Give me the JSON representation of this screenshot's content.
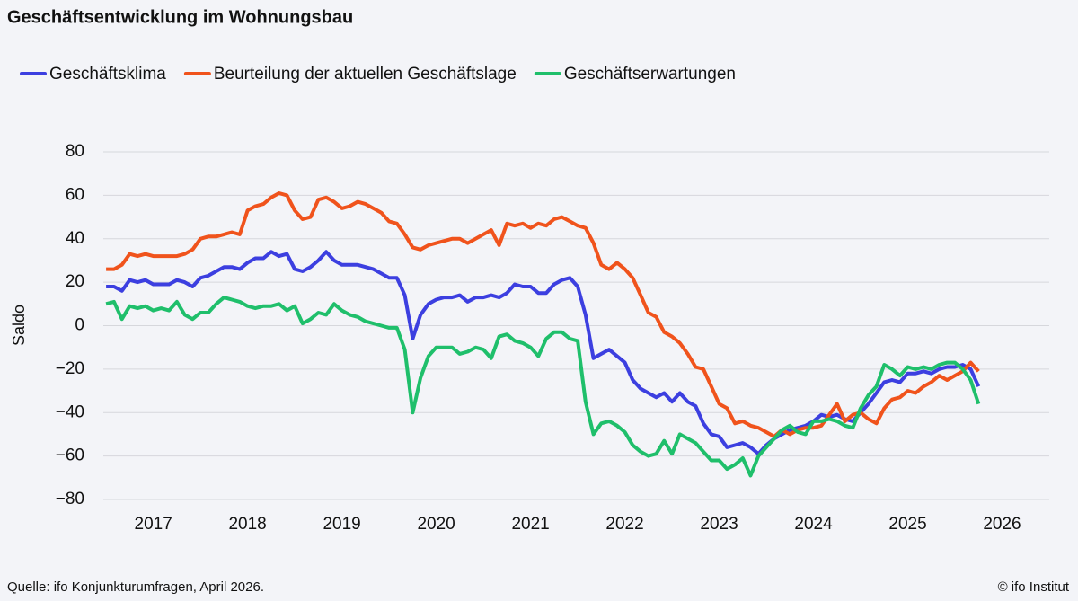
{
  "chart_data": {
    "type": "line",
    "title": "Geschäftsentwicklung im Wohnungsbau",
    "y_label": "Saldo",
    "source": "Quelle: ifo Konjunkturumfragen, April 2026.",
    "credit": "© ifo Institut",
    "x": [
      2017,
      2017.083,
      2017.167,
      2017.25,
      2017.333,
      2017.417,
      2017.5,
      2017.583,
      2017.667,
      2017.75,
      2017.833,
      2017.917,
      2018,
      2018.083,
      2018.167,
      2018.25,
      2018.333,
      2018.417,
      2018.5,
      2018.583,
      2018.667,
      2018.75,
      2018.833,
      2018.917,
      2019,
      2019.083,
      2019.167,
      2019.25,
      2019.333,
      2019.417,
      2019.5,
      2019.583,
      2019.667,
      2019.75,
      2019.833,
      2019.917,
      2020,
      2020.083,
      2020.167,
      2020.25,
      2020.333,
      2020.417,
      2020.5,
      2020.583,
      2020.667,
      2020.75,
      2020.833,
      2020.917,
      2021,
      2021.083,
      2021.167,
      2021.25,
      2021.333,
      2021.417,
      2021.5,
      2021.583,
      2021.667,
      2021.75,
      2021.833,
      2021.917,
      2022,
      2022.083,
      2022.167,
      2022.25,
      2022.333,
      2022.417,
      2022.5,
      2022.583,
      2022.667,
      2022.75,
      2022.833,
      2022.917,
      2023,
      2023.083,
      2023.167,
      2023.25,
      2023.333,
      2023.417,
      2023.5,
      2023.583,
      2023.667,
      2023.75,
      2023.833,
      2023.917,
      2024,
      2024.083,
      2024.167,
      2024.25,
      2024.333,
      2024.417,
      2024.5,
      2024.583,
      2024.667,
      2024.75,
      2024.833,
      2024.917,
      2025,
      2025.083,
      2025.167,
      2025.25,
      2025.333,
      2025.417,
      2025.5,
      2025.583,
      2025.667,
      2025.75,
      2025.833,
      2025.917,
      2026,
      2026.083,
      2026.167,
      2026.25
    ],
    "series": [
      {
        "name": "Geschäftsklima",
        "color": "#3c3fe0",
        "values": [
          18,
          18,
          16,
          21,
          20,
          21,
          19,
          19,
          19,
          21,
          20,
          18,
          22,
          23,
          25,
          27,
          27,
          26,
          29,
          31,
          31,
          34,
          32,
          33,
          26,
          25,
          27,
          30,
          34,
          30,
          28,
          28,
          28,
          27,
          26,
          24,
          22,
          22,
          14,
          -6,
          5,
          10,
          12,
          13,
          13,
          14,
          11,
          13,
          13,
          14,
          13,
          15,
          19,
          18,
          18,
          15,
          15,
          19,
          21,
          22,
          18,
          5,
          -15,
          -13,
          -11,
          -14,
          -17,
          -25,
          -29,
          -31,
          -33,
          -31,
          -35,
          -31,
          -35,
          -37,
          -45,
          -50,
          -51,
          -56,
          -55,
          -54,
          -56,
          -59,
          -55,
          -52,
          -50,
          -48,
          -47,
          -46,
          -44,
          -41,
          -42,
          -41,
          -43,
          -44,
          -40,
          -36,
          -31,
          -26,
          -25,
          -26,
          -22,
          -22,
          -21,
          -22,
          -20,
          -19,
          -19,
          -18,
          -20,
          -28
        ]
      },
      {
        "name": "Beurteilung der aktuellen Geschäftslage",
        "color": "#f0531c",
        "values": [
          26,
          26,
          28,
          33,
          32,
          33,
          32,
          32,
          32,
          32,
          33,
          35,
          40,
          41,
          41,
          42,
          43,
          42,
          53,
          55,
          56,
          59,
          61,
          60,
          53,
          49,
          50,
          58,
          59,
          57,
          54,
          55,
          57,
          56,
          54,
          52,
          48,
          47,
          42,
          36,
          35,
          37,
          38,
          39,
          40,
          40,
          38,
          40,
          42,
          44,
          37,
          47,
          46,
          47,
          45,
          47,
          46,
          49,
          50,
          48,
          46,
          45,
          38,
          28,
          26,
          29,
          26,
          22,
          14,
          6,
          4,
          -3,
          -5,
          -8,
          -13,
          -19,
          -20,
          -28,
          -36,
          -38,
          -45,
          -44,
          -46,
          -47,
          -49,
          -51,
          -48,
          -50,
          -48,
          -47,
          -47,
          -46,
          -41,
          -36,
          -44,
          -41,
          -40,
          -43,
          -45,
          -38,
          -34,
          -33,
          -30,
          -31,
          -28,
          -26,
          -23,
          -25,
          -23,
          -21,
          -17,
          -21
        ]
      },
      {
        "name": "Geschäftserwartungen",
        "color": "#1fbf6b",
        "values": [
          10,
          11,
          3,
          9,
          8,
          9,
          7,
          8,
          7,
          11,
          5,
          3,
          6,
          6,
          10,
          13,
          12,
          11,
          9,
          8,
          9,
          9,
          10,
          7,
          9,
          1,
          3,
          6,
          5,
          10,
          7,
          5,
          4,
          2,
          1,
          0,
          -1,
          -1,
          -11,
          -40,
          -24,
          -14,
          -10,
          -10,
          -10,
          -13,
          -12,
          -10,
          -11,
          -15,
          -5,
          -4,
          -7,
          -8,
          -10,
          -14,
          -6,
          -3,
          -3,
          -6,
          -7,
          -35,
          -50,
          -45,
          -44,
          -46,
          -49,
          -55,
          -58,
          -60,
          -59,
          -53,
          -59,
          -50,
          -52,
          -54,
          -58,
          -62,
          -62,
          -66,
          -64,
          -61,
          -69,
          -60,
          -56,
          -52,
          -48,
          -46,
          -49,
          -50,
          -44,
          -44,
          -43,
          -44,
          -46,
          -47,
          -38,
          -32,
          -28,
          -18,
          -20,
          -23,
          -19,
          -20,
          -19,
          -20,
          -18,
          -17,
          -17,
          -20,
          -25,
          -36
        ]
      }
    ],
    "xlim": [
      2016.97,
      2027
    ],
    "xticks": [
      {
        "value": 2017.5,
        "label": "2017"
      },
      {
        "value": 2018.5,
        "label": "2018"
      },
      {
        "value": 2019.5,
        "label": "2019"
      },
      {
        "value": 2020.5,
        "label": "2020"
      },
      {
        "value": 2021.5,
        "label": "2021"
      },
      {
        "value": 2022.5,
        "label": "2022"
      },
      {
        "value": 2023.5,
        "label": "2023"
      },
      {
        "value": 2024.5,
        "label": "2024"
      },
      {
        "value": 2025.5,
        "label": "2025"
      },
      {
        "value": 2026.5,
        "label": "2026"
      }
    ],
    "ylim": [
      -80,
      80
    ],
    "yticks": [
      {
        "value": -80,
        "label": "−80"
      },
      {
        "value": -60,
        "label": "−60"
      },
      {
        "value": -40,
        "label": "−40"
      },
      {
        "value": -20,
        "label": "−20"
      },
      0,
      20,
      40,
      60,
      80
    ],
    "grid": true,
    "legend": "top-left"
  }
}
